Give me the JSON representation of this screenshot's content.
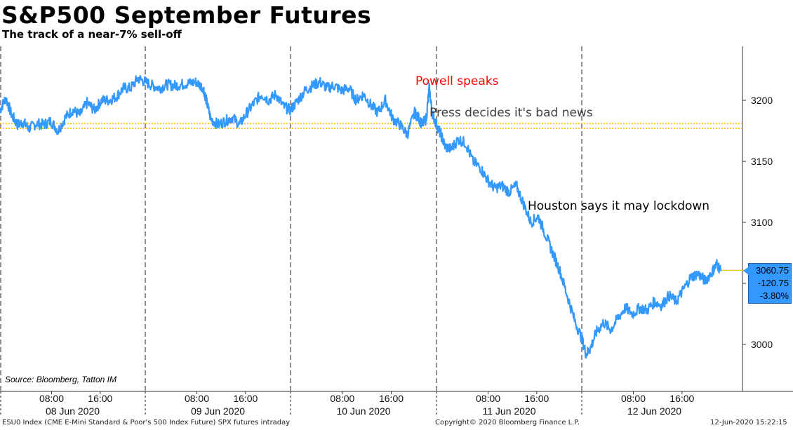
{
  "chart_data": {
    "type": "line",
    "title": "S&P500 September Futures",
    "subtitle": "The track of a near-7% sell-off",
    "y_ticks": [
      3000,
      3050,
      3100,
      3150,
      3200
    ],
    "y_tick_labels": [
      "3000",
      "",
      "3100",
      "3150",
      "3200"
    ],
    "ylim": [
      2970,
      3245
    ],
    "x_days": [
      "08 Jun 2020",
      "09 Jun 2020",
      "10 Jun 2020",
      "11 Jun 2020",
      "12 Jun 2020"
    ],
    "x_hour_labels": [
      "08:00",
      "16:00"
    ],
    "series": [
      {
        "color": "#3399ff",
        "points": [
          [
            0.0,
            3192
          ],
          [
            0.04,
            3202
          ],
          [
            0.08,
            3188
          ],
          [
            0.12,
            3180
          ],
          [
            0.16,
            3182
          ],
          [
            0.2,
            3177
          ],
          [
            0.25,
            3181
          ],
          [
            0.3,
            3180
          ],
          [
            0.35,
            3183
          ],
          [
            0.4,
            3175
          ],
          [
            0.45,
            3186
          ],
          [
            0.5,
            3192
          ],
          [
            0.55,
            3188
          ],
          [
            0.6,
            3198
          ],
          [
            0.65,
            3192
          ],
          [
            0.7,
            3200
          ],
          [
            0.75,
            3200
          ],
          [
            0.8,
            3203
          ],
          [
            0.85,
            3210
          ],
          [
            0.9,
            3210
          ],
          [
            0.95,
            3218
          ],
          [
            1.0,
            3215
          ],
          [
            1.05,
            3212
          ],
          [
            1.1,
            3210
          ],
          [
            1.15,
            3213
          ],
          [
            1.2,
            3212
          ],
          [
            1.25,
            3213
          ],
          [
            1.3,
            3214
          ],
          [
            1.35,
            3215
          ],
          [
            1.4,
            3210
          ],
          [
            1.42,
            3200
          ],
          [
            1.45,
            3185
          ],
          [
            1.5,
            3180
          ],
          [
            1.55,
            3183
          ],
          [
            1.6,
            3186
          ],
          [
            1.65,
            3180
          ],
          [
            1.7,
            3190
          ],
          [
            1.75,
            3198
          ],
          [
            1.8,
            3205
          ],
          [
            1.85,
            3200
          ],
          [
            1.9,
            3205
          ],
          [
            1.95,
            3195
          ],
          [
            2.0,
            3192
          ],
          [
            2.05,
            3200
          ],
          [
            2.1,
            3208
          ],
          [
            2.15,
            3212
          ],
          [
            2.2,
            3215
          ],
          [
            2.25,
            3210
          ],
          [
            2.3,
            3212
          ],
          [
            2.35,
            3208
          ],
          [
            2.4,
            3210
          ],
          [
            2.45,
            3200
          ],
          [
            2.5,
            3205
          ],
          [
            2.55,
            3196
          ],
          [
            2.6,
            3190
          ],
          [
            2.65,
            3200
          ],
          [
            2.7,
            3185
          ],
          [
            2.75,
            3180
          ],
          [
            2.8,
            3172
          ],
          [
            2.85,
            3190
          ],
          [
            2.88,
            3185
          ],
          [
            2.9,
            3180
          ],
          [
            2.93,
            3185
          ],
          [
            2.95,
            3210
          ],
          [
            2.97,
            3190
          ],
          [
            3.0,
            3180
          ],
          [
            3.03,
            3172
          ],
          [
            3.06,
            3162
          ],
          [
            3.1,
            3160
          ],
          [
            3.15,
            3168
          ],
          [
            3.2,
            3165
          ],
          [
            3.25,
            3150
          ],
          [
            3.3,
            3145
          ],
          [
            3.35,
            3135
          ],
          [
            3.4,
            3128
          ],
          [
            3.45,
            3130
          ],
          [
            3.5,
            3125
          ],
          [
            3.55,
            3130
          ],
          [
            3.6,
            3115
          ],
          [
            3.65,
            3100
          ],
          [
            3.7,
            3105
          ],
          [
            3.75,
            3090
          ],
          [
            3.8,
            3075
          ],
          [
            3.85,
            3060
          ],
          [
            3.9,
            3040
          ],
          [
            3.95,
            3020
          ],
          [
            4.0,
            3005
          ],
          [
            4.03,
            2992
          ],
          [
            4.06,
            2997
          ],
          [
            4.1,
            3010
          ],
          [
            4.15,
            3018
          ],
          [
            4.2,
            3012
          ],
          [
            4.25,
            3022
          ],
          [
            4.3,
            3030
          ],
          [
            4.35,
            3025
          ],
          [
            4.4,
            3030
          ],
          [
            4.45,
            3028
          ],
          [
            4.5,
            3035
          ],
          [
            4.55,
            3032
          ],
          [
            4.6,
            3040
          ],
          [
            4.65,
            3035
          ],
          [
            4.7,
            3045
          ],
          [
            4.75,
            3055
          ],
          [
            4.8,
            3058
          ],
          [
            4.85,
            3052
          ],
          [
            4.9,
            3060
          ],
          [
            4.93,
            3066
          ],
          [
            4.96,
            3060
          ]
        ]
      }
    ],
    "reference_lines": [
      {
        "value": 3181,
        "color": "#f2b800"
      },
      {
        "value": 3177,
        "color": "#f2b800"
      }
    ],
    "annotations": [
      {
        "text": "Powell speaks",
        "color": "#ff0000"
      },
      {
        "text": "Press decides it's bad news",
        "color": "#404040"
      },
      {
        "text": "Houston says it may lockdown",
        "color": "#000000"
      }
    ],
    "last_value": {
      "price": "3060.75",
      "change": "-120.75",
      "pct": "-3.80%",
      "value": 3060.75
    },
    "grid": false
  },
  "source": "Source: Bloomberg, Tatton IM",
  "footer": {
    "left": "ESU0 Index (CME E-Mini Standard & Poor's 500 Index Future) SPX futures intraday",
    "center": "Copyright© 2020 Bloomberg Finance L.P.",
    "right": "12-Jun-2020 15:22:15"
  }
}
